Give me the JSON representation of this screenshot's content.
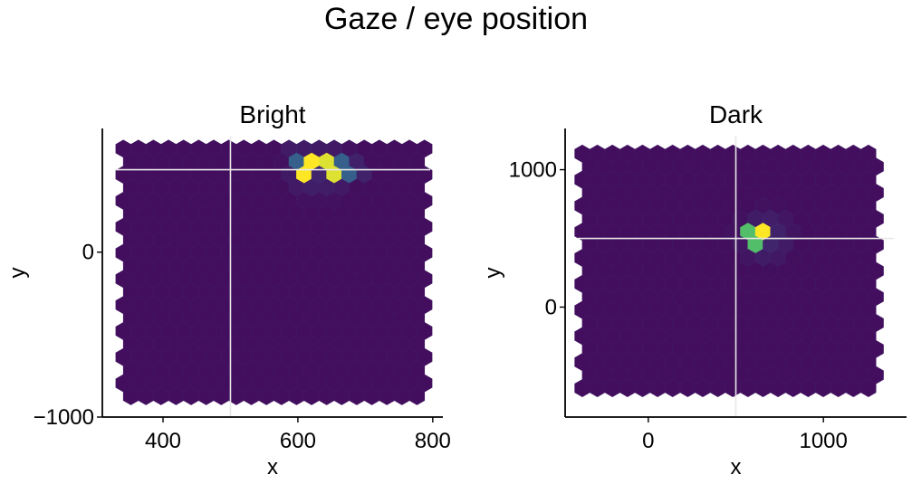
{
  "figure": {
    "title": "Gaze / eye position"
  },
  "chart_data": [
    {
      "type": "hexbin",
      "title": "Bright",
      "xlabel": "x",
      "ylabel": "y",
      "xlim": [
        310,
        815
      ],
      "ylim": [
        -1000,
        750
      ],
      "xticks": [
        400,
        600,
        800
      ],
      "xtick_labels": [
        "400",
        "600",
        "800"
      ],
      "yticks": [
        -1000,
        0
      ],
      "ytick_labels": [
        "−1000",
        "0"
      ],
      "grid": false,
      "bin_extent": {
        "x": [
          330,
          800
        ],
        "y": [
          -930,
          680
        ]
      },
      "reference_lines": {
        "vertical_x": 500,
        "horizontal_y": 500
      },
      "hotspots": [
        {
          "x": 620,
          "y": 500,
          "density": 1.0
        },
        {
          "x": 645,
          "y": 500,
          "density": 0.95
        },
        {
          "x": 620,
          "y": 560,
          "density": 0.55
        },
        {
          "x": 645,
          "y": 560,
          "density": 0.45
        },
        {
          "x": 600,
          "y": 500,
          "density": 0.3
        },
        {
          "x": 670,
          "y": 500,
          "density": 0.3
        },
        {
          "x": 610,
          "y": 440,
          "density": 0.2
        },
        {
          "x": 650,
          "y": 440,
          "density": 0.2
        },
        {
          "x": 590,
          "y": 560,
          "density": 0.12
        },
        {
          "x": 690,
          "y": 500,
          "density": 0.1
        },
        {
          "x": 600,
          "y": 620,
          "density": 0.08
        },
        {
          "x": 630,
          "y": 620,
          "density": 0.06
        }
      ]
    },
    {
      "type": "hexbin",
      "title": "Dark",
      "xlabel": "x",
      "ylabel": "y",
      "xlim": [
        -475,
        1475
      ],
      "ylim": [
        -800,
        1300
      ],
      "xticks": [
        0,
        1000
      ],
      "xtick_labels": [
        "0",
        "1000"
      ],
      "yticks": [
        0,
        1000
      ],
      "ytick_labels": [
        "0",
        "1000"
      ],
      "grid": false,
      "bin_extent": {
        "x": [
          -420,
          1350
        ],
        "y": [
          -730,
          1180
        ]
      },
      "reference_lines": {
        "vertical_x": 500,
        "horizontal_y": 500
      },
      "hotspots": [
        {
          "x": 670,
          "y": 510,
          "density": 1.0
        },
        {
          "x": 610,
          "y": 510,
          "density": 0.7
        },
        {
          "x": 640,
          "y": 580,
          "density": 0.55
        },
        {
          "x": 640,
          "y": 440,
          "density": 0.25
        },
        {
          "x": 580,
          "y": 580,
          "density": 0.12
        },
        {
          "x": 610,
          "y": 650,
          "density": 0.08
        }
      ]
    }
  ]
}
